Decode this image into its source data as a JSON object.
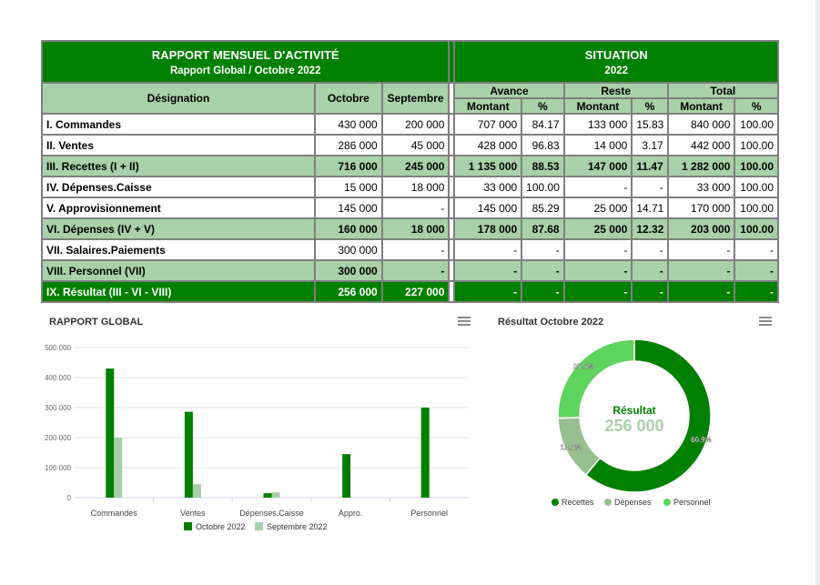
{
  "report": {
    "title": "RAPPORT MENSUEL D'ACTIVITÉ",
    "subtitle": "Rapport Global / Octobre 2022",
    "situation_title": "SITUATION",
    "situation_year": "2022",
    "col_designation": "Désignation",
    "col_octobre": "Octobre",
    "col_septembre": "Septembre",
    "group_avance": "Avance",
    "group_reste": "Reste",
    "group_total": "Total",
    "col_montant": "Montant",
    "col_pct": "%",
    "rows": [
      {
        "label": "I. Commandes",
        "oct": "430 000",
        "sep": "200 000",
        "av_m": "707 000",
        "av_p": "84.17",
        "re_m": "133 000",
        "re_p": "15.83",
        "to_m": "840 000",
        "to_p": "100.00",
        "style": "row"
      },
      {
        "label": "II. Ventes",
        "oct": "286 000",
        "sep": "45 000",
        "av_m": "428 000",
        "av_p": "96.83",
        "re_m": "14 000",
        "re_p": "3.17",
        "to_m": "442 000",
        "to_p": "100.00",
        "style": "row"
      },
      {
        "label": "III. Recettes (I + II)",
        "oct": "716 000",
        "sep": "245 000",
        "av_m": "1 135 000",
        "av_p": "88.53",
        "re_m": "147 000",
        "re_p": "11.47",
        "to_m": "1 282 000",
        "to_p": "100.00",
        "style": "sum"
      },
      {
        "label": "IV. Dépenses.Caisse",
        "oct": "15 000",
        "sep": "18 000",
        "av_m": "33 000",
        "av_p": "100.00",
        "re_m": "-",
        "re_p": "-",
        "to_m": "33 000",
        "to_p": "100.00",
        "style": "row"
      },
      {
        "label": "V. Approvisionnement",
        "oct": "145 000",
        "sep": "-",
        "av_m": "145 000",
        "av_p": "85.29",
        "re_m": "25 000",
        "re_p": "14.71",
        "to_m": "170 000",
        "to_p": "100.00",
        "style": "row"
      },
      {
        "label": "VI. Dépenses (IV + V)",
        "oct": "160 000",
        "sep": "18 000",
        "av_m": "178 000",
        "av_p": "87.68",
        "re_m": "25 000",
        "re_p": "12.32",
        "to_m": "203 000",
        "to_p": "100.00",
        "style": "sum"
      },
      {
        "label": "VII. Salaires.Paiements",
        "oct": "300 000",
        "sep": "-",
        "av_m": "-",
        "av_p": "-",
        "re_m": "-",
        "re_p": "-",
        "to_m": "-",
        "to_p": "-",
        "style": "row"
      },
      {
        "label": "VIII. Personnel (VII)",
        "oct": "300 000",
        "sep": "-",
        "av_m": "-",
        "av_p": "-",
        "re_m": "-",
        "re_p": "-",
        "to_m": "-",
        "to_p": "-",
        "style": "sum"
      },
      {
        "label": "IX. Résultat (III - VI - VIII)",
        "oct": "256 000",
        "sep": "227 000",
        "av_m": "-",
        "av_p": "-",
        "re_m": "-",
        "re_p": "-",
        "to_m": "-",
        "to_p": "-",
        "style": "res"
      }
    ]
  },
  "colors": {
    "dark_green": "#008000",
    "light_green": "#a9d1a9",
    "bar_october": "#008000",
    "bar_september": "#a9d1a9",
    "pie_recettes": "#008000",
    "pie_depenses": "#97bf8f",
    "pie_personnel": "#5ed35e"
  },
  "chart_data": [
    {
      "type": "bar",
      "title": "RAPPORT GLOBAL",
      "categories": [
        "Commandes",
        "Ventes",
        "Dépenses.Caisse",
        "Appro.",
        "Personnel"
      ],
      "series": [
        {
          "name": "Octobre 2022",
          "values": [
            430000,
            286000,
            15000,
            145000,
            300000
          ]
        },
        {
          "name": "Septembre 2022",
          "values": [
            200000,
            45000,
            18000,
            0,
            0
          ]
        }
      ],
      "ylim": [
        0,
        500000
      ],
      "yticks": [
        "0",
        "100 000",
        "200 000",
        "300 000",
        "400 000",
        "500 000"
      ],
      "legend": "bottom"
    },
    {
      "type": "pie",
      "title": "Résultat Octobre 2022",
      "center_label": "Résultat",
      "center_value": "256 000",
      "slices": [
        {
          "name": "Recettes",
          "value": 60.9,
          "label": "60.9%"
        },
        {
          "name": "Dépenses",
          "value": 13.6,
          "label": "13.6%"
        },
        {
          "name": "Personnel",
          "value": 25.5,
          "label": "25.5%"
        }
      ],
      "legend": "bottom"
    }
  ]
}
